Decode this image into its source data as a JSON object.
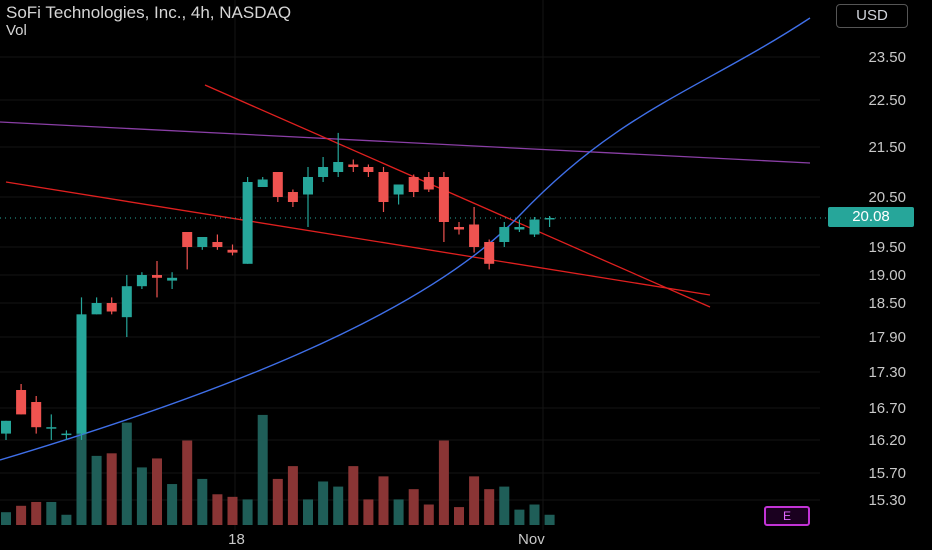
{
  "header": {
    "title": "SoFi Technologies, Inc., 4h, NASDAQ",
    "indicator": "Vol"
  },
  "currency_button": "USD",
  "last_price_label": "20.08",
  "earnings_badge": "E",
  "colors": {
    "up": "#26a69a",
    "down": "#ef5350",
    "vol_up": "#1f5e58",
    "vol_down": "#8a3535",
    "trend_red": "#e0201f",
    "curve_blue": "#3f6fe8",
    "line_purple": "#8a3fa6",
    "grid": "#141414"
  },
  "chart_data": {
    "type": "candlestick",
    "title": "SoFi Technologies, Inc., 4h, NASDAQ",
    "y_ticks": [
      "23.50",
      "22.50",
      "21.50",
      "20.50",
      "19.50",
      "19.00",
      "18.50",
      "17.90",
      "17.30",
      "16.70",
      "16.20",
      "15.70",
      "15.30"
    ],
    "y_tick_values": [
      23.5,
      22.5,
      21.5,
      20.5,
      19.5,
      19.0,
      18.5,
      17.9,
      17.3,
      16.7,
      16.2,
      15.7,
      15.3
    ],
    "x_labels": [
      {
        "label": "18",
        "index": 15
      },
      {
        "label": "Nov",
        "index": 34
      }
    ],
    "last_price": 20.08,
    "candles": [
      {
        "o": 16.3,
        "h": 16.5,
        "l": 16.2,
        "c": 16.5
      },
      {
        "o": 17.0,
        "h": 17.1,
        "l": 16.6,
        "c": 16.6
      },
      {
        "o": 16.8,
        "h": 16.9,
        "l": 16.3,
        "c": 16.4
      },
      {
        "o": 16.4,
        "h": 16.6,
        "l": 16.2,
        "c": 16.4
      },
      {
        "o": 16.3,
        "h": 16.35,
        "l": 16.2,
        "c": 16.3
      },
      {
        "o": 16.3,
        "h": 18.6,
        "l": 16.2,
        "c": 18.3
      },
      {
        "o": 18.3,
        "h": 18.6,
        "l": 18.3,
        "c": 18.5
      },
      {
        "o": 18.5,
        "h": 18.6,
        "l": 18.3,
        "c": 18.35
      },
      {
        "o": 18.25,
        "h": 19.0,
        "l": 17.9,
        "c": 18.8
      },
      {
        "o": 18.8,
        "h": 19.05,
        "l": 18.75,
        "c": 19.0
      },
      {
        "o": 19.0,
        "h": 19.25,
        "l": 18.6,
        "c": 18.95
      },
      {
        "o": 18.9,
        "h": 19.05,
        "l": 18.75,
        "c": 18.95
      },
      {
        "o": 19.8,
        "h": 19.8,
        "l": 19.1,
        "c": 19.5
      },
      {
        "o": 19.5,
        "h": 19.7,
        "l": 19.45,
        "c": 19.7
      },
      {
        "o": 19.6,
        "h": 19.75,
        "l": 19.45,
        "c": 19.5
      },
      {
        "o": 19.45,
        "h": 19.55,
        "l": 19.35,
        "c": 19.4
      },
      {
        "o": 19.2,
        "h": 20.9,
        "l": 19.2,
        "c": 20.8
      },
      {
        "o": 20.7,
        "h": 20.9,
        "l": 20.7,
        "c": 20.85
      },
      {
        "o": 21.0,
        "h": 21.0,
        "l": 20.4,
        "c": 20.5
      },
      {
        "o": 20.6,
        "h": 20.65,
        "l": 20.3,
        "c": 20.4
      },
      {
        "o": 20.55,
        "h": 21.1,
        "l": 19.9,
        "c": 20.9
      },
      {
        "o": 20.9,
        "h": 21.3,
        "l": 20.8,
        "c": 21.1
      },
      {
        "o": 21.0,
        "h": 21.8,
        "l": 20.9,
        "c": 21.2
      },
      {
        "o": 21.15,
        "h": 21.25,
        "l": 21.0,
        "c": 21.1
      },
      {
        "o": 21.1,
        "h": 21.15,
        "l": 20.9,
        "c": 21.0
      },
      {
        "o": 21.0,
        "h": 21.1,
        "l": 20.2,
        "c": 20.4
      },
      {
        "o": 20.55,
        "h": 20.75,
        "l": 20.35,
        "c": 20.75
      },
      {
        "o": 20.9,
        "h": 20.95,
        "l": 20.5,
        "c": 20.6
      },
      {
        "o": 20.9,
        "h": 21.0,
        "l": 20.6,
        "c": 20.65
      },
      {
        "o": 20.9,
        "h": 21.0,
        "l": 19.6,
        "c": 20.0
      },
      {
        "o": 19.9,
        "h": 20.0,
        "l": 19.75,
        "c": 19.85
      },
      {
        "o": 19.95,
        "h": 20.3,
        "l": 19.4,
        "c": 19.5
      },
      {
        "o": 19.6,
        "h": 19.65,
        "l": 19.1,
        "c": 19.2
      },
      {
        "o": 19.6,
        "h": 20.0,
        "l": 19.5,
        "c": 19.9
      },
      {
        "o": 19.85,
        "h": 20.05,
        "l": 19.8,
        "c": 19.9
      },
      {
        "o": 19.75,
        "h": 20.1,
        "l": 19.7,
        "c": 20.05
      },
      {
        "o": 20.05,
        "h": 20.12,
        "l": 19.9,
        "c": 20.08
      }
    ],
    "volume": [
      0.1,
      0.15,
      0.18,
      0.18,
      0.08,
      1.0,
      0.54,
      0.56,
      0.8,
      0.45,
      0.52,
      0.32,
      0.66,
      0.36,
      0.24,
      0.22,
      0.2,
      0.86,
      0.36,
      0.46,
      0.2,
      0.34,
      0.3,
      0.46,
      0.2,
      0.38,
      0.2,
      0.28,
      0.16,
      0.66,
      0.14,
      0.38,
      0.28,
      0.3,
      0.12,
      0.16,
      0.08
    ]
  }
}
